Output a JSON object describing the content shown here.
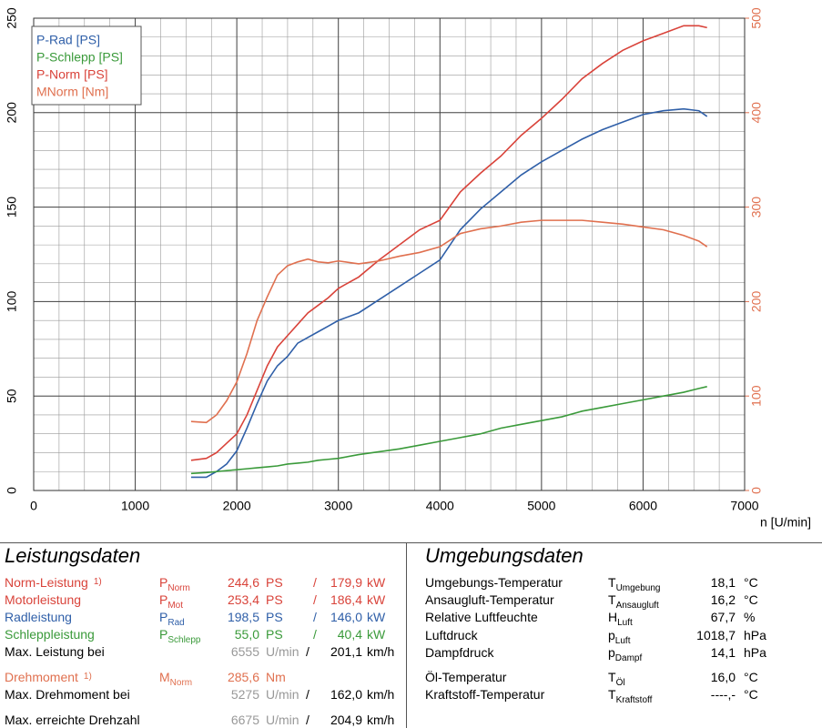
{
  "chart_data": {
    "type": "line",
    "xlabel": "n [U/min]",
    "xlim": [
      0,
      7000
    ],
    "xticks": [
      0,
      1000,
      2000,
      3000,
      4000,
      5000,
      6000,
      7000
    ],
    "ylim": [
      0,
      250
    ],
    "yticks": [
      0,
      50,
      100,
      150,
      200,
      250
    ],
    "y2lim": [
      0,
      500
    ],
    "y2ticks": [
      0,
      100,
      200,
      300,
      400,
      500
    ],
    "y2color": "#e0704f",
    "grid": true,
    "xgrid_step": 250,
    "ygrid_step": 10,
    "legend": "upper left",
    "x": [
      1550,
      1700,
      1800,
      1900,
      2000,
      2100,
      2200,
      2300,
      2400,
      2500,
      2600,
      2700,
      2800,
      2900,
      3000,
      3200,
      3400,
      3600,
      3800,
      4000,
      4200,
      4400,
      4600,
      4800,
      5000,
      5200,
      5400,
      5600,
      5800,
      6000,
      6200,
      6400,
      6550,
      6630
    ],
    "series": [
      {
        "name": "P-Rad [PS]",
        "color": "#2f5fa8",
        "values": [
          7,
          7,
          10,
          14,
          21,
          33,
          46,
          58,
          66,
          71,
          78,
          81,
          84,
          87,
          90,
          94,
          101,
          108,
          115,
          122,
          138,
          149,
          158,
          167,
          174,
          180,
          186,
          191,
          195,
          199,
          201,
          202,
          201,
          198
        ]
      },
      {
        "name": "P-Schlepp [PS]",
        "color": "#3a9a3a",
        "values": [
          9,
          9.5,
          10,
          10.5,
          11,
          11.5,
          12,
          12.5,
          13,
          14,
          14.5,
          15,
          16,
          16.5,
          17,
          19,
          20.5,
          22,
          24,
          26,
          28,
          30,
          33,
          35,
          37,
          39,
          42,
          44,
          46,
          48,
          50,
          52,
          54,
          55
        ]
      },
      {
        "name": "P-Norm [PS]",
        "color": "#d9433a",
        "values": [
          16,
          17,
          20,
          25,
          30,
          40,
          53,
          66,
          76,
          82,
          88,
          94,
          98,
          102,
          107,
          113,
          122,
          130,
          138,
          143,
          158,
          168,
          177,
          188,
          197,
          207,
          218,
          226,
          233,
          238,
          242,
          246,
          246,
          245
        ]
      },
      {
        "name": "MNorm [Nm]",
        "color": "#e0704f",
        "axis": "y2",
        "values": [
          73,
          72,
          80,
          95,
          115,
          145,
          180,
          205,
          228,
          238,
          242,
          245,
          242,
          241,
          243,
          240,
          243,
          248,
          252,
          258,
          272,
          277,
          280,
          284,
          286,
          286,
          286,
          284,
          282,
          279,
          276,
          270,
          264,
          258
        ]
      }
    ]
  },
  "left": {
    "title": "Leistungsdaten",
    "rows": [
      {
        "label": "Norm-Leistung",
        "note": "1)",
        "sym": "P",
        "sub": "Norm",
        "v1": "244,6",
        "u1": "PS",
        "sep": "/",
        "v2": "179,9",
        "u2": "kW",
        "color": "#d9433a"
      },
      {
        "label": "Motorleistung",
        "sym": "P",
        "sub": "Mot",
        "v1": "253,4",
        "u1": "PS",
        "sep": "/",
        "v2": "186,4",
        "u2": "kW",
        "color": "#d9433a"
      },
      {
        "label": "Radleistung",
        "sym": "P",
        "sub": "Rad",
        "v1": "198,5",
        "u1": "PS",
        "sep": "/",
        "v2": "146,0",
        "u2": "kW",
        "color": "#2f5fa8"
      },
      {
        "label": "Schleppleistung",
        "sym": "P",
        "sub": "Schlepp",
        "v1": "55,0",
        "u1": "PS",
        "sep": "/",
        "v2": "40,4",
        "u2": "kW",
        "color": "#3a9a3a"
      },
      {
        "label": "Max. Leistung bei",
        "v1": "6555",
        "u1": "U/min",
        "sep": "/",
        "v2": "201,1",
        "u2": "km/h",
        "color": "#000000"
      },
      {
        "label": "Drehmoment",
        "note": "1)",
        "sym": "M",
        "sub": "Norm",
        "v1": "285,6",
        "u1": "Nm",
        "color": "#e0704f"
      },
      {
        "label": "Max. Drehmoment bei",
        "v1": "5275",
        "u1": "U/min",
        "sep": "/",
        "v2": "162,0",
        "u2": "km/h",
        "color": "#000000"
      },
      {
        "label": "Max. erreichte Drehzahl",
        "v1": "6675",
        "u1": "U/min",
        "sep": "/",
        "v2": "204,9",
        "u2": "km/h",
        "color": "#000000"
      }
    ]
  },
  "right": {
    "title": "Umgebungsdaten",
    "rows": [
      {
        "label": "Umgebungs-Temperatur",
        "sym": "T",
        "sub": "Umgebung",
        "value": "18,1",
        "unit": "°C"
      },
      {
        "label": "Ansaugluft-Temperatur",
        "sym": "T",
        "sub": "Ansaugluft",
        "value": "16,2",
        "unit": "°C"
      },
      {
        "label": "Relative Luftfeuchte",
        "sym": "H",
        "sub": "Luft",
        "value": "67,7",
        "unit": "%"
      },
      {
        "label": "Luftdruck",
        "sym": "p",
        "sub": "Luft",
        "value": "1018,7",
        "unit": "hPa"
      },
      {
        "label": "Dampfdruck",
        "sym": "p",
        "sub": "Dampf",
        "value": "14,1",
        "unit": "hPa"
      },
      {
        "label": "Öl-Temperatur",
        "sym": "T",
        "sub": "Öl",
        "value": "16,0",
        "unit": "°C"
      },
      {
        "label": "Kraftstoff-Temperatur",
        "sym": "T",
        "sub": "Kraftstoff",
        "value": "----,-",
        "unit": "°C"
      }
    ]
  }
}
